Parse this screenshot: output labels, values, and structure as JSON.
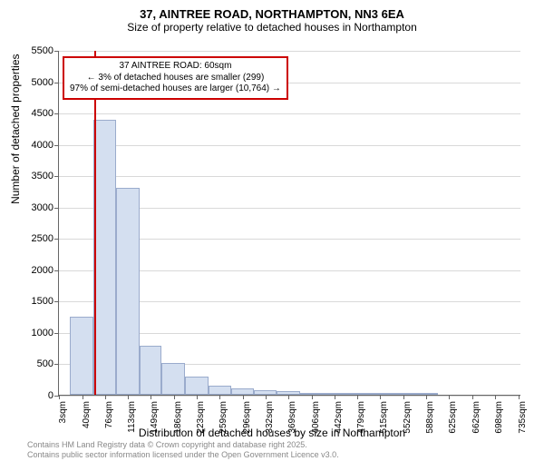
{
  "chart": {
    "type": "histogram",
    "title_main": "37, AINTREE ROAD, NORTHAMPTON, NN3 6EA",
    "title_sub": "Size of property relative to detached houses in Northampton",
    "y_axis_label": "Number of detached properties",
    "x_axis_label": "Distribution of detached houses by size in Northampton",
    "background_color": "#ffffff",
    "grid_color": "#666666",
    "grid_opacity": 0.25,
    "bar_fill": "#d4dff0",
    "bar_stroke": "#9aabcc",
    "ref_line_color": "#cc0000",
    "info_box_border": "#cc0000",
    "ymax": 5500,
    "yticks": [
      0,
      500,
      1000,
      1500,
      2000,
      2500,
      3000,
      3500,
      4000,
      4500,
      5000,
      5500
    ],
    "xmin": 3,
    "xmax": 740,
    "xticks": [
      3,
      40,
      76,
      113,
      149,
      186,
      223,
      259,
      296,
      332,
      369,
      406,
      442,
      479,
      515,
      552,
      588,
      625,
      662,
      698,
      735
    ],
    "xtick_unit": "sqm",
    "bars": [
      {
        "x0": 21,
        "x1": 58,
        "y": 1250
      },
      {
        "x0": 58,
        "x1": 94,
        "y": 4380
      },
      {
        "x0": 94,
        "x1": 131,
        "y": 3300
      },
      {
        "x0": 131,
        "x1": 167,
        "y": 780
      },
      {
        "x0": 167,
        "x1": 204,
        "y": 510
      },
      {
        "x0": 204,
        "x1": 241,
        "y": 290
      },
      {
        "x0": 241,
        "x1": 277,
        "y": 150
      },
      {
        "x0": 277,
        "x1": 314,
        "y": 100
      },
      {
        "x0": 314,
        "x1": 350,
        "y": 70
      },
      {
        "x0": 350,
        "x1": 387,
        "y": 60
      },
      {
        "x0": 387,
        "x1": 424,
        "y": 35
      },
      {
        "x0": 424,
        "x1": 460,
        "y": 20
      },
      {
        "x0": 460,
        "x1": 497,
        "y": 12
      },
      {
        "x0": 497,
        "x1": 533,
        "y": 10
      },
      {
        "x0": 533,
        "x1": 570,
        "y": 7
      },
      {
        "x0": 570,
        "x1": 607,
        "y": 5
      }
    ],
    "reference_value": 60,
    "info_box": {
      "line1": "37 AINTREE ROAD: 60sqm",
      "line2": "← 3% of detached houses are smaller (299)",
      "line3": "97% of semi-detached houses are larger (10,764) →"
    },
    "footer_line1": "Contains HM Land Registry data © Crown copyright and database right 2025.",
    "footer_line2": "Contains public sector information licensed under the Open Government Licence v3.0."
  }
}
